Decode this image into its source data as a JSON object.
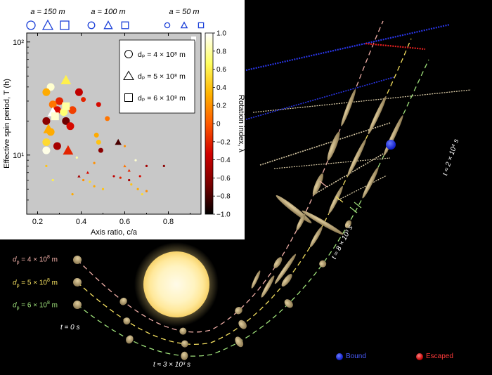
{
  "panel_header": {
    "groups": [
      {
        "label": "a = 150 m"
      },
      {
        "label": "a = 100 m"
      },
      {
        "label": "a = 50 m"
      }
    ]
  },
  "chart_data": {
    "type": "scatter",
    "xlabel": "Axis ratio, c/a",
    "ylabel": "Effective spin period, T (h)",
    "x_ticks": [
      "0.2",
      "0.4",
      "0.6",
      "0.8"
    ],
    "y_ticks": [
      "10¹",
      "10²"
    ],
    "xlim": [
      0.15,
      0.95
    ],
    "ylim": [
      3,
      120
    ],
    "y_scale": "log",
    "background": "#c8c8c8",
    "colorbar": {
      "label": "Rotation index, λ",
      "ticks": [
        "1.0",
        "0.8",
        "0.6",
        "0.4",
        "0.2",
        "0",
        "−0.2",
        "−0.4",
        "−0.6",
        "−0.8",
        "−1.0"
      ],
      "range": [
        -1,
        1
      ],
      "colors": [
        "#000000",
        "#7a0000",
        "#d10000",
        "#ff5a00",
        "#ffb400",
        "#ffff60",
        "#ffffff"
      ]
    },
    "legend": {
      "placement": "top-right",
      "items": [
        {
          "marker": "circle",
          "label": "d_p = 4 × 10⁸ m"
        },
        {
          "marker": "triangle",
          "label": "d_p = 5 × 10⁸ m"
        },
        {
          "marker": "square",
          "label": "d_p = 6 × 10⁸ m"
        }
      ]
    },
    "points": [
      {
        "x": 0.26,
        "y": 40,
        "lambda": 0.9,
        "shape": "circle",
        "size": "large"
      },
      {
        "x": 0.24,
        "y": 36,
        "lambda": 0.3,
        "shape": "circle",
        "size": "large"
      },
      {
        "x": 0.3,
        "y": 30,
        "lambda": -0.2,
        "shape": "circle",
        "size": "large"
      },
      {
        "x": 0.27,
        "y": 28,
        "lambda": 0.1,
        "shape": "circle",
        "size": "large"
      },
      {
        "x": 0.29,
        "y": 25,
        "lambda": -0.3,
        "shape": "circle",
        "size": "large"
      },
      {
        "x": 0.32,
        "y": 24,
        "lambda": 0.7,
        "shape": "circle",
        "size": "large"
      },
      {
        "x": 0.24,
        "y": 20,
        "lambda": -0.6,
        "shape": "circle",
        "size": "large"
      },
      {
        "x": 0.26,
        "y": 16,
        "lambda": 0.3,
        "shape": "circle",
        "size": "large"
      },
      {
        "x": 0.24,
        "y": 13,
        "lambda": 0.5,
        "shape": "circle",
        "size": "large"
      },
      {
        "x": 0.24,
        "y": 11,
        "lambda": 0.95,
        "shape": "circle",
        "size": "large"
      },
      {
        "x": 0.29,
        "y": 12,
        "lambda": -0.5,
        "shape": "circle",
        "size": "large"
      },
      {
        "x": 0.33,
        "y": 20,
        "lambda": -0.7,
        "shape": "circle",
        "size": "large"
      },
      {
        "x": 0.35,
        "y": 18,
        "lambda": -0.3,
        "shape": "circle",
        "size": "large"
      },
      {
        "x": 0.39,
        "y": 36,
        "lambda": -0.4,
        "shape": "circle",
        "size": "large"
      },
      {
        "x": 0.36,
        "y": 25,
        "lambda": -0.1,
        "shape": "circle",
        "size": "large"
      },
      {
        "x": 0.33,
        "y": 46,
        "lambda": 0.6,
        "shape": "triangle",
        "size": "large"
      },
      {
        "x": 0.27,
        "y": 24,
        "lambda": 1.0,
        "shape": "triangle",
        "size": "large"
      },
      {
        "x": 0.25,
        "y": 17,
        "lambda": 0.3,
        "shape": "triangle",
        "size": "large"
      },
      {
        "x": 0.34,
        "y": 11,
        "lambda": -0.2,
        "shape": "triangle",
        "size": "large"
      },
      {
        "x": 0.33,
        "y": 27,
        "lambda": 0.8,
        "shape": "square",
        "size": "large"
      },
      {
        "x": 0.28,
        "y": 22,
        "lambda": 0.9,
        "shape": "square",
        "size": "large"
      },
      {
        "x": 0.41,
        "y": 31,
        "lambda": -0.2,
        "shape": "circle",
        "size": "medium"
      },
      {
        "x": 0.48,
        "y": 28,
        "lambda": -0.3,
        "shape": "circle",
        "size": "medium"
      },
      {
        "x": 0.52,
        "y": 21,
        "lambda": 0.1,
        "shape": "circle",
        "size": "medium"
      },
      {
        "x": 0.48,
        "y": 13,
        "lambda": 0.4,
        "shape": "circle",
        "size": "medium"
      },
      {
        "x": 0.49,
        "y": 11,
        "lambda": -0.6,
        "shape": "circle",
        "size": "medium"
      },
      {
        "x": 0.47,
        "y": 15,
        "lambda": 0.3,
        "shape": "circle",
        "size": "medium"
      },
      {
        "x": 0.57,
        "y": 13,
        "lambda": -0.8,
        "shape": "triangle",
        "size": "medium"
      },
      {
        "x": 0.6,
        "y": 12,
        "lambda": 0.2,
        "shape": "circle",
        "size": "small"
      },
      {
        "x": 0.46,
        "y": 8.5,
        "lambda": 0.2,
        "shape": "circle",
        "size": "small"
      },
      {
        "x": 0.55,
        "y": 6.5,
        "lambda": -0.4,
        "shape": "circle",
        "size": "small"
      },
      {
        "x": 0.58,
        "y": 6.3,
        "lambda": -0.2,
        "shape": "circle",
        "size": "small"
      },
      {
        "x": 0.62,
        "y": 6.0,
        "lambda": -0.5,
        "shape": "circle",
        "size": "small"
      },
      {
        "x": 0.67,
        "y": 6.5,
        "lambda": -0.3,
        "shape": "circle",
        "size": "small"
      },
      {
        "x": 0.7,
        "y": 8.0,
        "lambda": -0.5,
        "shape": "circle",
        "size": "small"
      },
      {
        "x": 0.78,
        "y": 8.0,
        "lambda": -0.6,
        "shape": "circle",
        "size": "small"
      },
      {
        "x": 0.6,
        "y": 8.0,
        "lambda": 0.1,
        "shape": "triangle",
        "size": "small"
      },
      {
        "x": 0.62,
        "y": 7.3,
        "lambda": -0.2,
        "shape": "triangle",
        "size": "small"
      },
      {
        "x": 0.43,
        "y": 7.0,
        "lambda": -0.3,
        "shape": "triangle",
        "size": "small"
      },
      {
        "x": 0.39,
        "y": 6.5,
        "lambda": -0.5,
        "shape": "triangle",
        "size": "small"
      },
      {
        "x": 0.41,
        "y": 6.0,
        "lambda": 0.2,
        "shape": "circle",
        "size": "small"
      },
      {
        "x": 0.44,
        "y": 5.8,
        "lambda": 0.5,
        "shape": "circle",
        "size": "small"
      },
      {
        "x": 0.46,
        "y": 5.3,
        "lambda": 0.3,
        "shape": "circle",
        "size": "small"
      },
      {
        "x": 0.5,
        "y": 5.0,
        "lambda": 0.4,
        "shape": "circle",
        "size": "small"
      },
      {
        "x": 0.63,
        "y": 5.5,
        "lambda": 0.4,
        "shape": "circle",
        "size": "small"
      },
      {
        "x": 0.66,
        "y": 5.0,
        "lambda": 0.3,
        "shape": "circle",
        "size": "small"
      },
      {
        "x": 0.68,
        "y": 4.5,
        "lambda": 0.5,
        "shape": "circle",
        "size": "small"
      },
      {
        "x": 0.7,
        "y": 4.8,
        "lambda": 0.2,
        "shape": "circle",
        "size": "small"
      },
      {
        "x": 0.36,
        "y": 4.5,
        "lambda": 0.3,
        "shape": "circle",
        "size": "small"
      },
      {
        "x": 0.27,
        "y": 6.0,
        "lambda": 0.6,
        "shape": "circle",
        "size": "small"
      },
      {
        "x": 0.24,
        "y": 8.0,
        "lambda": 0.4,
        "shape": "circle",
        "size": "small"
      },
      {
        "x": 0.38,
        "y": 9.5,
        "lambda": 0.8,
        "shape": "circle",
        "size": "small"
      },
      {
        "x": 0.65,
        "y": 9.0,
        "lambda": 0.9,
        "shape": "circle",
        "size": "small"
      }
    ]
  },
  "scene": {
    "trajectory_labels": [
      {
        "text": "d",
        "sub": "p",
        "rest": " = 4 × 10",
        "sup": "8",
        "unit": " m",
        "color": "#f2b0a8"
      },
      {
        "text": "d",
        "sub": "p",
        "rest": " = 5 × 10",
        "sup": "8",
        "unit": " m",
        "color": "#f5e060"
      },
      {
        "text": "d",
        "sub": "p",
        "rest": " = 6 × 10",
        "sup": "8",
        "unit": " m",
        "color": "#9ee07a"
      }
    ],
    "time_labels": {
      "t0": "t = 0 s",
      "t1": "t ≈ 3 × 10³ s",
      "t2": "t ≈ 8 × 10³ s",
      "t3": "t ≈ 2 × 10⁴ s"
    },
    "outcome_legend": [
      {
        "label": "Bound",
        "color": "#2f3cff"
      },
      {
        "label": "Escaped",
        "color": "#ff2a2a"
      }
    ]
  }
}
